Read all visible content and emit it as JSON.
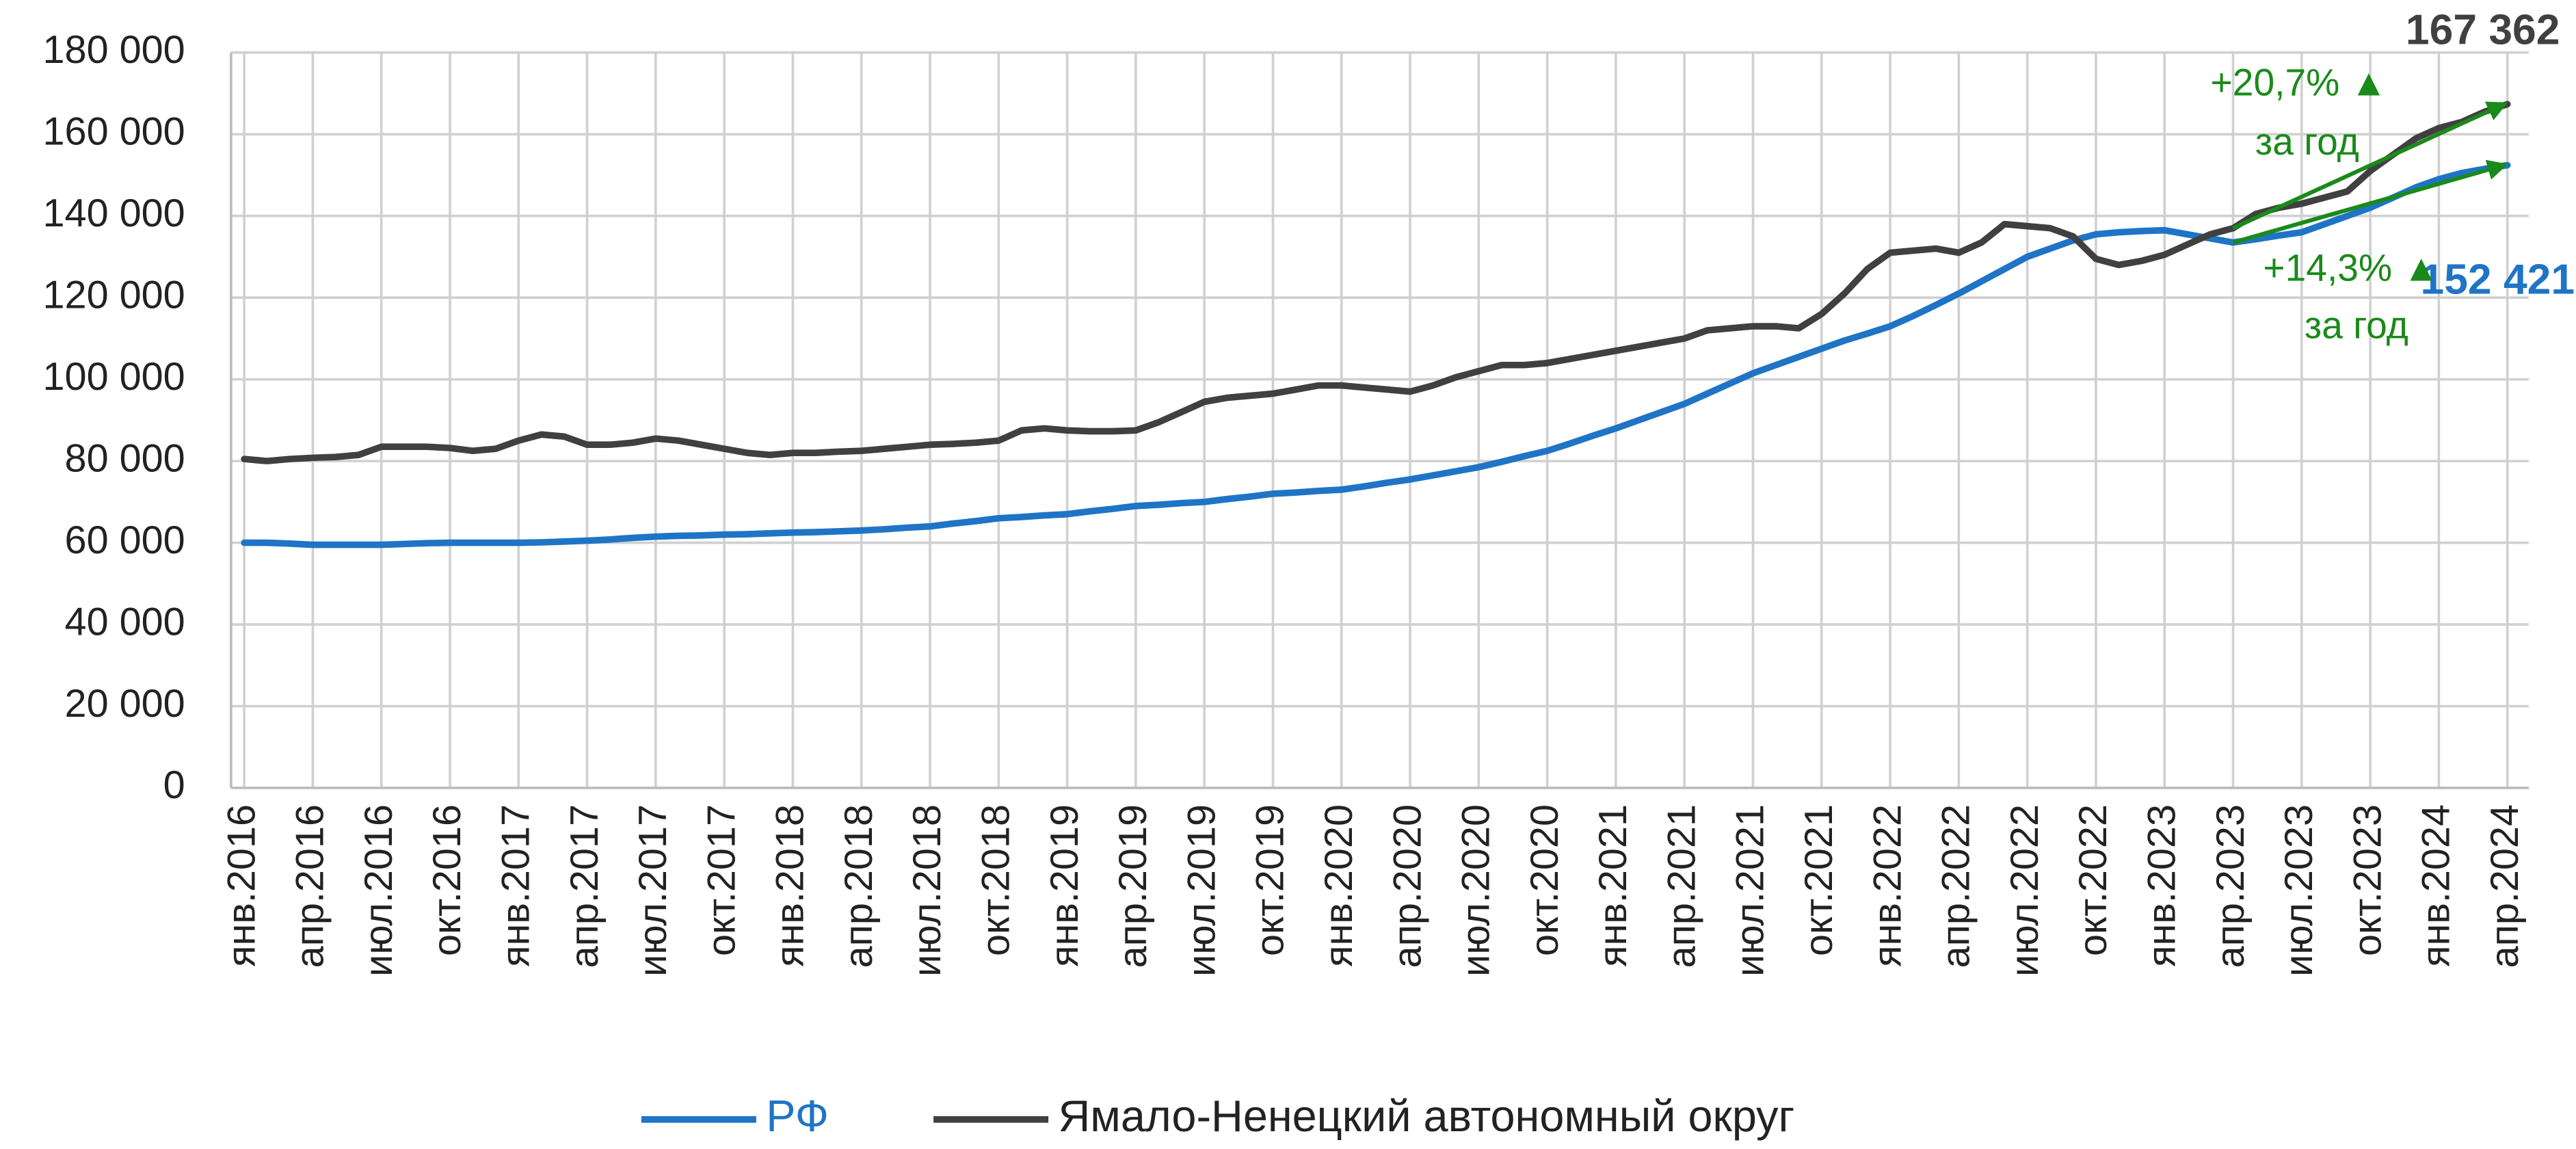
{
  "chart_data": {
    "type": "line",
    "categories": [
      "янв.2016",
      null,
      null,
      "апр.2016",
      null,
      null,
      "июл.2016",
      null,
      null,
      "окт.2016",
      null,
      null,
      "янв.2017",
      null,
      null,
      "апр.2017",
      null,
      null,
      "июл.2017",
      null,
      null,
      "окт.2017",
      null,
      null,
      "янв.2018",
      null,
      null,
      "апр.2018",
      null,
      null,
      "июл.2018",
      null,
      null,
      "окт.2018",
      null,
      null,
      "янв.2019",
      null,
      null,
      "апр.2019",
      null,
      null,
      "июл.2019",
      null,
      null,
      "окт.2019",
      null,
      null,
      "янв.2020",
      null,
      null,
      "апр.2020",
      null,
      null,
      "июл.2020",
      null,
      null,
      "окт.2020",
      null,
      null,
      "янв.2021",
      null,
      null,
      "апр.2021",
      null,
      null,
      "июл.2021",
      null,
      null,
      "окт.2021",
      null,
      null,
      "янв.2022",
      null,
      null,
      "апр.2022",
      null,
      null,
      "июл.2022",
      null,
      null,
      "окт.2022",
      null,
      null,
      "янв.2023",
      null,
      null,
      "апр.2023",
      null,
      null,
      "июл.2023",
      null,
      null,
      "окт.2023",
      null,
      null,
      "янв.2024",
      null,
      null,
      "апр.2024"
    ],
    "series": [
      {
        "name": "РФ",
        "color": "#1f74c6",
        "values": [
          60000,
          60000,
          59800,
          59500,
          59500,
          59500,
          59500,
          59700,
          59900,
          60000,
          60000,
          60000,
          60000,
          60100,
          60300,
          60500,
          60800,
          61200,
          61500,
          61700,
          61800,
          62000,
          62100,
          62300,
          62500,
          62600,
          62800,
          63000,
          63300,
          63700,
          64000,
          64700,
          65300,
          66000,
          66300,
          66700,
          67000,
          67700,
          68300,
          69000,
          69300,
          69700,
          70000,
          70700,
          71300,
          72000,
          72300,
          72700,
          73000,
          73800,
          74700,
          75500,
          76500,
          77500,
          78500,
          79800,
          81200,
          82500,
          84300,
          86200,
          88000,
          90000,
          92000,
          94000,
          96500,
          99000,
          101500,
          103500,
          105500,
          107500,
          109500,
          111200,
          113000,
          115500,
          118200,
          121000,
          124000,
          127000,
          130000,
          132000,
          134000,
          135500,
          136000,
          136300,
          136500,
          135500,
          134500,
          133500,
          134300,
          135200,
          136000,
          138000,
          140000,
          142000,
          144500,
          147000,
          149000,
          150500,
          151500,
          152421
        ]
      },
      {
        "name": "Ямало-Ненецкий автономный округ",
        "color": "#404040",
        "values": [
          80500,
          80000,
          80500,
          80800,
          81000,
          81500,
          83500,
          83500,
          83500,
          83200,
          82500,
          83000,
          85000,
          86500,
          86000,
          84000,
          84000,
          84500,
          85500,
          85000,
          84000,
          83000,
          82000,
          81500,
          82000,
          82000,
          82300,
          82500,
          83000,
          83500,
          84000,
          84200,
          84500,
          85000,
          87500,
          88000,
          87500,
          87300,
          87300,
          87500,
          89500,
          92000,
          94500,
          95500,
          96000,
          96500,
          97500,
          98500,
          98500,
          98000,
          97500,
          97000,
          98500,
          100500,
          102000,
          103500,
          103500,
          104000,
          105000,
          106000,
          107000,
          108000,
          109000,
          110000,
          112000,
          112500,
          113000,
          113000,
          112500,
          116000,
          121000,
          127000,
          131000,
          131500,
          132000,
          131000,
          133500,
          138000,
          137500,
          137000,
          135000,
          129500,
          128000,
          129000,
          130500,
          133000,
          135500,
          137000,
          140500,
          142000,
          143000,
          144500,
          146000,
          151000,
          155000,
          159000,
          161500,
          163000,
          165500,
          167362
        ]
      }
    ],
    "ylim": [
      0,
      180000
    ],
    "yticks": [
      0,
      {
        "value": 20000,
        "label": "20 000"
      },
      {
        "value": 40000,
        "label": "40 000"
      },
      {
        "value": 60000,
        "label": "60 000"
      },
      {
        "value": 80000,
        "label": "80 000"
      },
      {
        "value": 100000,
        "label": "100 000"
      },
      {
        "value": 120000,
        "label": "120 000"
      },
      {
        "value": 140000,
        "label": "140 000"
      },
      {
        "value": 160000,
        "label": "160 000"
      },
      {
        "value": 180000,
        "label": "180 000"
      }
    ],
    "grid": true,
    "annotations": [
      {
        "text": "167 362",
        "color": "#404040"
      },
      {
        "text": "152 421",
        "color": "#1f74c6"
      },
      {
        "text": "+20,7% ▲",
        "color": "#1a8a1a"
      },
      {
        "text": "за год",
        "color": "#1a8a1a"
      },
      {
        "text": "+14,3% ▲",
        "color": "#1a8a1a"
      },
      {
        "text": "за год",
        "color": "#1a8a1a"
      }
    ],
    "arrow_color": "#1a8a1a",
    "legend": "bottom"
  }
}
